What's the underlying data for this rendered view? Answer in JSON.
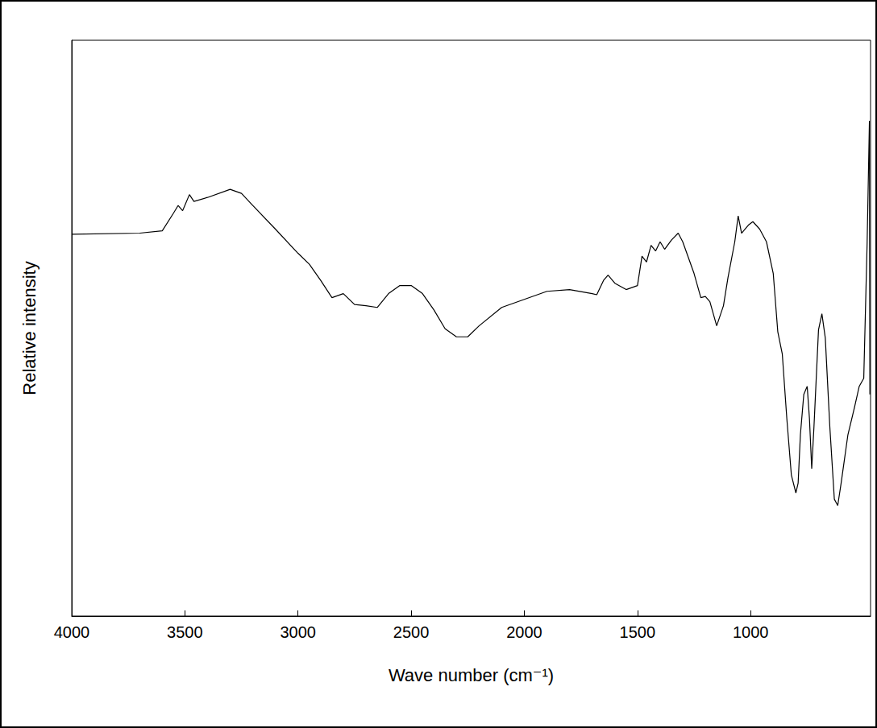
{
  "chart_data": {
    "type": "line",
    "x_label": "Wave number (cm⁻¹)",
    "y_label": "Relative intensity",
    "xlim": [
      4000,
      470
    ],
    "xticks": [
      4000,
      3500,
      3000,
      2500,
      2000,
      1500,
      1000
    ],
    "ylim": [
      0,
      100
    ],
    "tick_labels": "x",
    "grid": false,
    "color": "#000000",
    "x": [
      4000,
      3700,
      3600,
      3550,
      3530,
      3510,
      3480,
      3460,
      3400,
      3300,
      3250,
      3200,
      3100,
      3000,
      2950,
      2900,
      2850,
      2800,
      2750,
      2700,
      2650,
      2600,
      2550,
      2500,
      2450,
      2400,
      2350,
      2300,
      2250,
      2200,
      2100,
      2000,
      1900,
      1800,
      1700,
      1680,
      1650,
      1630,
      1600,
      1550,
      1500,
      1480,
      1460,
      1440,
      1420,
      1400,
      1380,
      1350,
      1320,
      1300,
      1250,
      1220,
      1200,
      1180,
      1150,
      1120,
      1100,
      1070,
      1055,
      1040,
      1010,
      990,
      960,
      930,
      900,
      880,
      860,
      840,
      820,
      800,
      790,
      780,
      765,
      750,
      740,
      730,
      720,
      700,
      685,
      670,
      650,
      630,
      615,
      600,
      570,
      540,
      520,
      500,
      485,
      475,
      473
    ],
    "values": [
      66.3,
      66.5,
      66.9,
      70.0,
      71.3,
      70.4,
      73.2,
      72.0,
      72.7,
      74.1,
      73.4,
      71.3,
      67.2,
      63.0,
      61.1,
      58.3,
      55.3,
      56.0,
      54.1,
      53.9,
      53.6,
      56.0,
      57.4,
      57.4,
      56.0,
      53.2,
      49.9,
      48.5,
      48.5,
      50.4,
      53.6,
      55.0,
      56.4,
      56.7,
      56.0,
      55.8,
      58.3,
      59.2,
      57.8,
      56.7,
      57.4,
      62.5,
      61.5,
      64.4,
      63.4,
      65.0,
      63.7,
      65.3,
      66.5,
      65.0,
      59.5,
      55.3,
      55.5,
      54.6,
      50.4,
      53.9,
      58.8,
      65.0,
      69.5,
      66.5,
      67.9,
      68.5,
      67.2,
      65.0,
      59.5,
      49.4,
      45.5,
      34.3,
      24.5,
      21.4,
      23.1,
      31.5,
      38.5,
      39.9,
      34.3,
      25.6,
      32.9,
      49.7,
      52.5,
      48.3,
      32.9,
      20.3,
      19.2,
      23.1,
      31.5,
      36.4,
      39.9,
      41.3,
      65.0,
      86.0,
      38.5
    ]
  }
}
